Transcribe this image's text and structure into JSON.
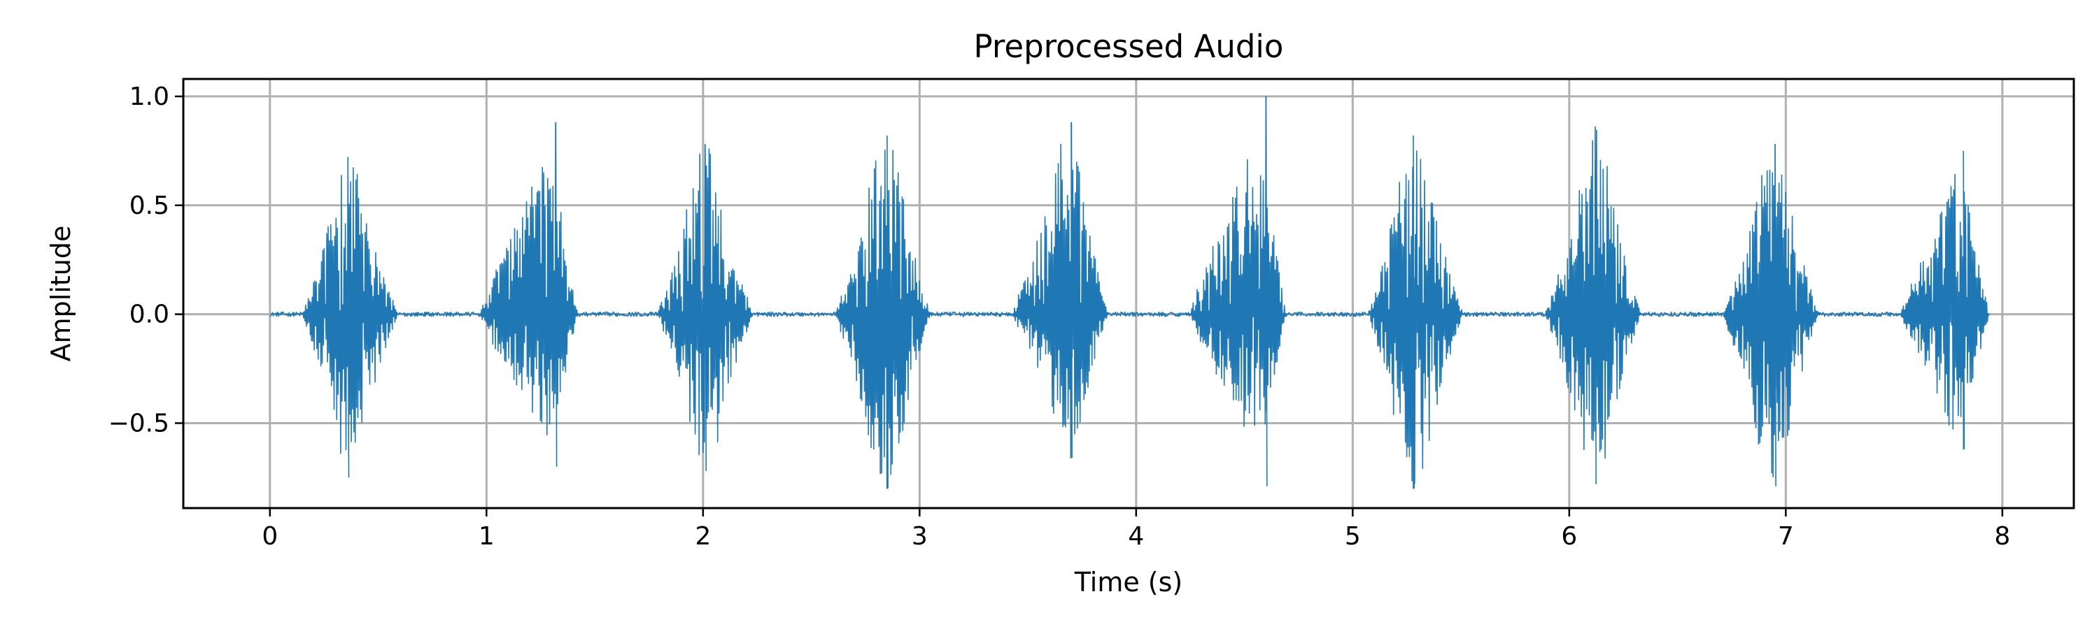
{
  "chart_data": {
    "type": "line",
    "title": "Preprocessed Audio",
    "xlabel": "Time (s)",
    "ylabel": "Amplitude",
    "xlim": [
      -0.4,
      8.33
    ],
    "ylim": [
      -0.89,
      1.08
    ],
    "x_ticks": [
      0,
      1,
      2,
      3,
      4,
      5,
      6,
      7,
      8
    ],
    "x_tick_labels": [
      "0",
      "1",
      "2",
      "3",
      "4",
      "5",
      "6",
      "7",
      "8"
    ],
    "y_ticks": [
      -0.5,
      0.0,
      0.5,
      1.0
    ],
    "y_tick_labels": [
      "−0.5",
      "0.0",
      "0.5",
      "1.0"
    ],
    "grid": true,
    "legend": "none",
    "series": [
      {
        "color": "#1f77b4",
        "x_start": 0,
        "x_end": 7.94,
        "noise_floor": 0.01,
        "bursts": [
          {
            "start": 0.15,
            "end": 0.59,
            "peak_time": 0.36,
            "max": 0.72,
            "min": -0.75
          },
          {
            "start": 0.97,
            "end": 1.42,
            "peak_time": 1.32,
            "max": 0.88,
            "min": -0.7
          },
          {
            "start": 1.79,
            "end": 2.23,
            "peak_time": 2.01,
            "max": 0.78,
            "min": -0.72
          },
          {
            "start": 2.61,
            "end": 3.05,
            "peak_time": 2.85,
            "max": 0.82,
            "min": -0.8
          },
          {
            "start": 3.43,
            "end": 3.87,
            "peak_time": 3.7,
            "max": 0.88,
            "min": -0.66
          },
          {
            "start": 4.25,
            "end": 4.69,
            "peak_time": 4.6,
            "max": 1.0,
            "min": -0.79
          },
          {
            "start": 5.07,
            "end": 5.51,
            "peak_time": 5.28,
            "max": 0.82,
            "min": -0.8
          },
          {
            "start": 5.89,
            "end": 6.33,
            "peak_time": 6.12,
            "max": 0.86,
            "min": -0.78
          },
          {
            "start": 6.71,
            "end": 7.15,
            "peak_time": 6.95,
            "max": 0.78,
            "min": -0.79
          },
          {
            "start": 7.53,
            "end": 7.94,
            "peak_time": 7.82,
            "max": 0.75,
            "min": -0.62
          }
        ]
      }
    ]
  }
}
